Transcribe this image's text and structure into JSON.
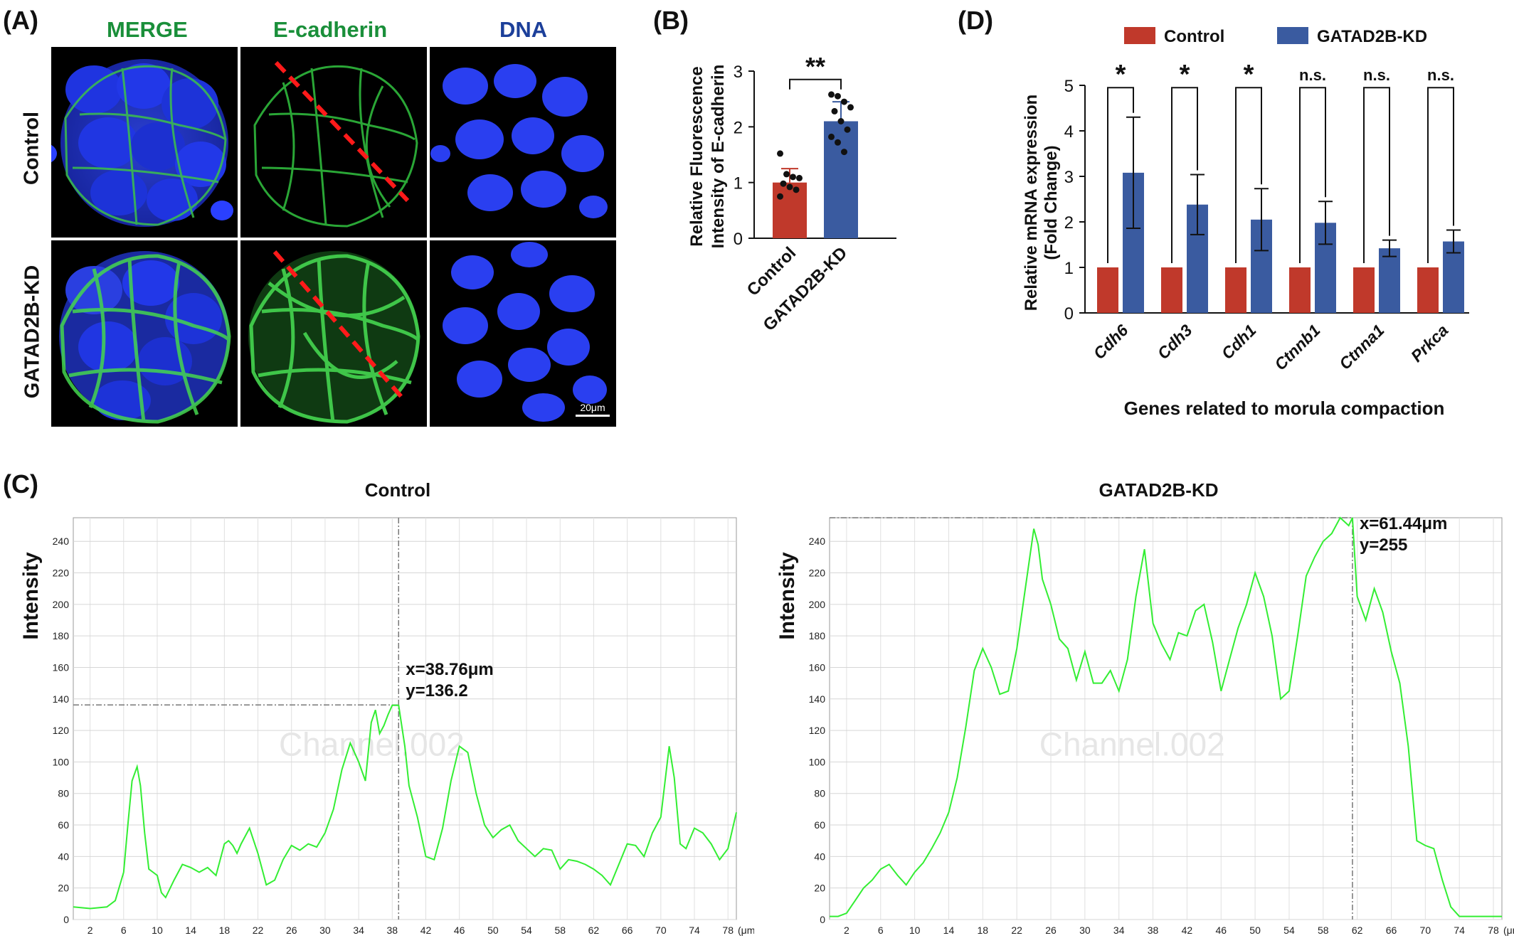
{
  "panels": {
    "A": "(A)",
    "B": "(B)",
    "C": "(C)",
    "D": "(D)"
  },
  "panel_a": {
    "columns": [
      "MERGE",
      "E-cadherin",
      "DNA"
    ],
    "rows": [
      "Control",
      "GATAD2B-KD"
    ],
    "scale_bar": "20μm",
    "colors": {
      "merge_title": "#1a8f3a",
      "ecad_title": "#1a8f3a",
      "dna_title": "#1c3f9a",
      "line": "#ff1a1a"
    }
  },
  "chart_data": [
    {
      "id": "B",
      "type": "bar",
      "categories": [
        "Control",
        "GATAD2B-KD"
      ],
      "values": [
        1.0,
        2.1
      ],
      "errors": [
        0.25,
        0.35
      ],
      "points": [
        [
          1.52,
          1.15,
          1.1,
          1.08,
          0.98,
          0.92,
          0.87,
          0.75
        ],
        [
          2.58,
          2.55,
          2.45,
          2.35,
          2.28,
          2.1,
          1.95,
          1.82,
          1.72,
          1.55
        ]
      ],
      "colors": [
        "#c0392b",
        "#3a5ba0"
      ],
      "ylabel": "Relative Fluorescence\nIntensity of E-cadherin",
      "ylim": [
        0,
        3
      ],
      "yticks": [
        0,
        1,
        2,
        3
      ],
      "significance": "**"
    },
    {
      "id": "D",
      "type": "bar",
      "categories": [
        "Cdh6",
        "Cdh3",
        "Cdh1",
        "Ctnnb1",
        "Ctnna1",
        "Prkca"
      ],
      "series": [
        {
          "name": "Control",
          "values": [
            1,
            1,
            1,
            1,
            1,
            1
          ],
          "color": "#c0392b"
        },
        {
          "name": "GATAD2B-KD",
          "values": [
            3.08,
            2.38,
            2.05,
            1.98,
            1.42,
            1.57
          ],
          "errors": [
            1.22,
            0.66,
            0.68,
            0.47,
            0.18,
            0.25
          ],
          "color": "#3a5ba0"
        }
      ],
      "significance": [
        "*",
        "*",
        "*",
        "n.s.",
        "n.s.",
        "n.s."
      ],
      "ylabel": "Relative mRNA expression\n(Fold Change)",
      "xlabel": "Genes related to morula compaction",
      "ylim": [
        0,
        5
      ],
      "yticks": [
        0,
        1,
        2,
        3,
        4,
        5
      ]
    },
    {
      "id": "C1",
      "type": "line",
      "title": "Control",
      "ylabel": "Intensity",
      "x_unit": "(μm)",
      "xlim": [
        0,
        79
      ],
      "ylim": [
        0,
        255
      ],
      "xticks": [
        2,
        6,
        10,
        14,
        18,
        22,
        26,
        30,
        34,
        38,
        42,
        46,
        50,
        54,
        58,
        62,
        66,
        70,
        74,
        78
      ],
      "yticks": [
        0,
        20,
        40,
        60,
        80,
        100,
        120,
        140,
        160,
        180,
        200,
        220,
        240
      ],
      "color": "#33ee33",
      "watermark": "Channel.002",
      "cursor": {
        "x": 38.76,
        "y": 136.2,
        "label_x": "x=38.76μm",
        "label_y": "y=136.2"
      },
      "x": [
        0,
        2,
        4,
        5,
        6,
        6.5,
        7,
        7.6,
        8,
        8.5,
        9,
        9.5,
        10,
        10.5,
        11,
        12,
        13,
        14,
        15,
        16,
        17,
        18,
        18.5,
        19,
        19.5,
        20,
        21,
        22,
        23,
        24,
        25,
        26,
        27,
        28,
        29,
        30,
        31,
        32,
        33,
        34,
        34.8,
        35.5,
        36,
        36.5,
        37,
        37.5,
        38,
        38.76,
        39.5,
        40,
        41,
        42,
        43,
        44,
        45,
        46,
        47,
        48,
        49,
        50,
        51,
        52,
        53,
        54,
        55,
        56,
        57,
        58,
        59,
        60,
        61,
        62,
        63,
        64,
        65,
        66,
        67,
        68,
        69,
        70,
        71,
        71.6,
        72.3,
        73,
        74,
        75,
        76,
        77,
        78,
        79
      ],
      "y": [
        8,
        7,
        8,
        12,
        30,
        60,
        88,
        97,
        85,
        55,
        32,
        30,
        28,
        17,
        14,
        25,
        35,
        33,
        30,
        33,
        28,
        48,
        50,
        47,
        42,
        48,
        58,
        42,
        22,
        25,
        38,
        47,
        44,
        48,
        46,
        55,
        70,
        95,
        112,
        100,
        88,
        125,
        133,
        118,
        123,
        130,
        136,
        136,
        110,
        85,
        65,
        40,
        38,
        58,
        88,
        110,
        106,
        80,
        60,
        52,
        57,
        60,
        50,
        45,
        40,
        45,
        44,
        32,
        38,
        37,
        35,
        32,
        28,
        22,
        35,
        48,
        47,
        40,
        55,
        65,
        110,
        90,
        48,
        45,
        58,
        55,
        48,
        38,
        45,
        68
      ]
    },
    {
      "id": "C2",
      "type": "line",
      "title": "GATAD2B-KD",
      "ylabel": "Intensity",
      "x_unit": "(μm)",
      "xlim": [
        0,
        79
      ],
      "ylim": [
        0,
        255
      ],
      "xticks": [
        2,
        6,
        10,
        14,
        18,
        22,
        26,
        30,
        34,
        38,
        42,
        46,
        50,
        54,
        58,
        62,
        66,
        70,
        74,
        78
      ],
      "yticks": [
        0,
        20,
        40,
        60,
        80,
        100,
        120,
        140,
        160,
        180,
        200,
        220,
        240
      ],
      "color": "#33ee33",
      "watermark": "Channel.002",
      "cursor": {
        "x": 61.44,
        "y": 255,
        "label_x": "x=61.44μm",
        "label_y": "y=255"
      },
      "x": [
        0,
        1,
        2,
        3,
        4,
        5,
        6,
        7,
        8,
        9,
        10,
        11,
        12,
        13,
        14,
        15,
        16,
        17,
        18,
        19,
        20,
        21,
        22,
        23,
        24,
        24.5,
        25,
        26,
        27,
        28,
        29,
        30,
        31,
        32,
        33,
        34,
        35,
        36,
        37,
        38,
        39,
        40,
        41,
        42,
        43,
        44,
        45,
        46,
        47,
        48,
        49,
        50,
        51,
        52,
        53,
        54,
        55,
        56,
        57,
        58,
        59,
        60,
        61,
        61.44,
        62,
        63,
        64,
        65,
        66,
        67,
        68,
        69,
        70,
        71,
        72,
        73,
        74,
        75,
        76,
        77,
        78,
        79
      ],
      "y": [
        2,
        2,
        4,
        12,
        20,
        25,
        32,
        35,
        28,
        22,
        30,
        36,
        45,
        55,
        68,
        90,
        122,
        158,
        172,
        160,
        143,
        145,
        172,
        210,
        248,
        238,
        216,
        200,
        178,
        172,
        152,
        170,
        150,
        150,
        158,
        145,
        165,
        205,
        235,
        188,
        175,
        165,
        182,
        180,
        196,
        200,
        176,
        145,
        165,
        185,
        200,
        220,
        205,
        180,
        140,
        145,
        180,
        218,
        230,
        240,
        245,
        255,
        250,
        255,
        205,
        190,
        210,
        195,
        170,
        150,
        110,
        50,
        47,
        45,
        25,
        8,
        2,
        2,
        2,
        2,
        2,
        2
      ]
    }
  ]
}
